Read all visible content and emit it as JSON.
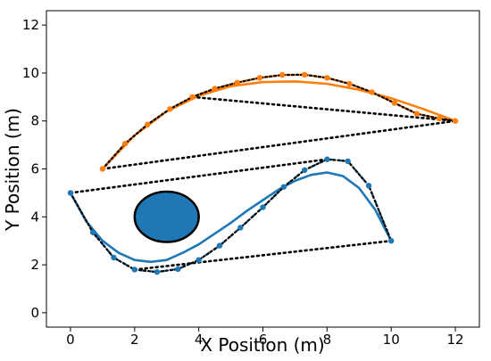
{
  "chart_data": {
    "type": "scatter",
    "title": "",
    "xlabel": "X Position (m)",
    "ylabel": "Y Position (m)",
    "xlim": [
      -0.75,
      12.75
    ],
    "ylim": [
      -0.6,
      12.6
    ],
    "xticks": [
      0,
      2,
      4,
      6,
      8,
      10,
      12
    ],
    "yticks": [
      0,
      2,
      4,
      6,
      8,
      10,
      12
    ],
    "grid": false,
    "legend": "none",
    "colors": {
      "blue": "#1f77b4",
      "orange": "#ff7f0e",
      "black": "#000000"
    },
    "series": [
      {
        "color": "#1f77b4",
        "style": "dashed-with-markers",
        "points": [
          [
            0,
            5
          ],
          [
            0.7,
            3.35
          ],
          [
            1.35,
            2.3
          ],
          [
            2,
            1.8
          ],
          [
            2.7,
            1.7
          ],
          [
            3.35,
            1.82
          ],
          [
            4,
            2.2
          ],
          [
            4.65,
            2.8
          ],
          [
            5.3,
            3.55
          ],
          [
            6,
            4.4
          ],
          [
            6.65,
            5.25
          ],
          [
            7.3,
            5.95
          ],
          [
            8,
            6.4
          ],
          [
            8.65,
            6.32
          ],
          [
            9.3,
            5.3
          ],
          [
            10,
            3
          ]
        ]
      },
      {
        "color": "#1f77b4",
        "style": "solid-curve",
        "points": [
          [
            0,
            5
          ],
          [
            0.5,
            3.8
          ],
          [
            1,
            3
          ],
          [
            1.5,
            2.5
          ],
          [
            2,
            2.2
          ],
          [
            2.5,
            2.12
          ],
          [
            3,
            2.2
          ],
          [
            3.5,
            2.5
          ],
          [
            4,
            2.85
          ],
          [
            4.5,
            3.3
          ],
          [
            5,
            3.75
          ],
          [
            5.5,
            4.25
          ],
          [
            6,
            4.7
          ],
          [
            6.5,
            5.15
          ],
          [
            7,
            5.5
          ],
          [
            7.5,
            5.75
          ],
          [
            8,
            5.85
          ],
          [
            8.5,
            5.7
          ],
          [
            9,
            5.2
          ],
          [
            9.5,
            4.3
          ],
          [
            10,
            3
          ]
        ]
      },
      {
        "color": "#ff7f0e",
        "style": "solid-with-markers",
        "points": [
          [
            1,
            6
          ],
          [
            1.7,
            7.05
          ],
          [
            2.4,
            7.85
          ],
          [
            3.1,
            8.5
          ],
          [
            3.8,
            9
          ],
          [
            4.5,
            9.35
          ],
          [
            5.2,
            9.6
          ],
          [
            5.9,
            9.8
          ],
          [
            6.6,
            9.92
          ],
          [
            7.3,
            9.93
          ],
          [
            8,
            9.8
          ],
          [
            8.7,
            9.55
          ],
          [
            9.4,
            9.2
          ],
          [
            10.1,
            8.75
          ],
          [
            10.8,
            8.3
          ],
          [
            11.5,
            8.1
          ],
          [
            12,
            8
          ]
        ]
      },
      {
        "color": "#ff7f0e",
        "style": "solid-curve",
        "points": [
          [
            1,
            6
          ],
          [
            2,
            7.4
          ],
          [
            3,
            8.4
          ],
          [
            4,
            9.05
          ],
          [
            5,
            9.45
          ],
          [
            6,
            9.62
          ],
          [
            7,
            9.65
          ],
          [
            8,
            9.55
          ],
          [
            9,
            9.3
          ],
          [
            10,
            8.95
          ],
          [
            11,
            8.5
          ],
          [
            12,
            8
          ]
        ]
      }
    ],
    "control_polygons": [
      [
        [
          0,
          5
        ],
        [
          0.7,
          3.35
        ],
        [
          1.35,
          2.3
        ],
        [
          2,
          1.8
        ],
        [
          2.7,
          1.7
        ],
        [
          3.35,
          1.82
        ],
        [
          4,
          2.2
        ],
        [
          4.65,
          2.8
        ],
        [
          5.3,
          3.55
        ],
        [
          6,
          4.4
        ],
        [
          6.65,
          5.25
        ],
        [
          7.3,
          5.95
        ],
        [
          8,
          6.4
        ],
        [
          8.65,
          6.32
        ],
        [
          9.3,
          5.3
        ],
        [
          10,
          3
        ]
      ],
      [
        [
          1,
          6
        ],
        [
          1.7,
          7.05
        ],
        [
          2.4,
          7.85
        ],
        [
          3.1,
          8.5
        ],
        [
          3.8,
          9
        ],
        [
          4.5,
          9.35
        ],
        [
          5.2,
          9.6
        ],
        [
          5.9,
          9.8
        ],
        [
          6.6,
          9.92
        ],
        [
          7.3,
          9.93
        ],
        [
          8,
          9.8
        ],
        [
          8.7,
          9.55
        ],
        [
          9.4,
          9.2
        ],
        [
          10.1,
          8.75
        ],
        [
          10.8,
          8.3
        ],
        [
          11.5,
          8.1
        ],
        [
          12,
          8
        ]
      ]
    ],
    "connector_lines": [
      [
        [
          0,
          5
        ],
        [
          8,
          6.4
        ]
      ],
      [
        [
          2,
          1.8
        ],
        [
          10,
          3
        ]
      ],
      [
        [
          1,
          6
        ],
        [
          12,
          8
        ]
      ],
      [
        [
          3.8,
          9
        ],
        [
          12,
          8
        ]
      ]
    ],
    "obstacle": {
      "cx": 3,
      "cy": 4,
      "rx": 1,
      "ry": 1.05,
      "fill": "#1f77b4"
    }
  }
}
